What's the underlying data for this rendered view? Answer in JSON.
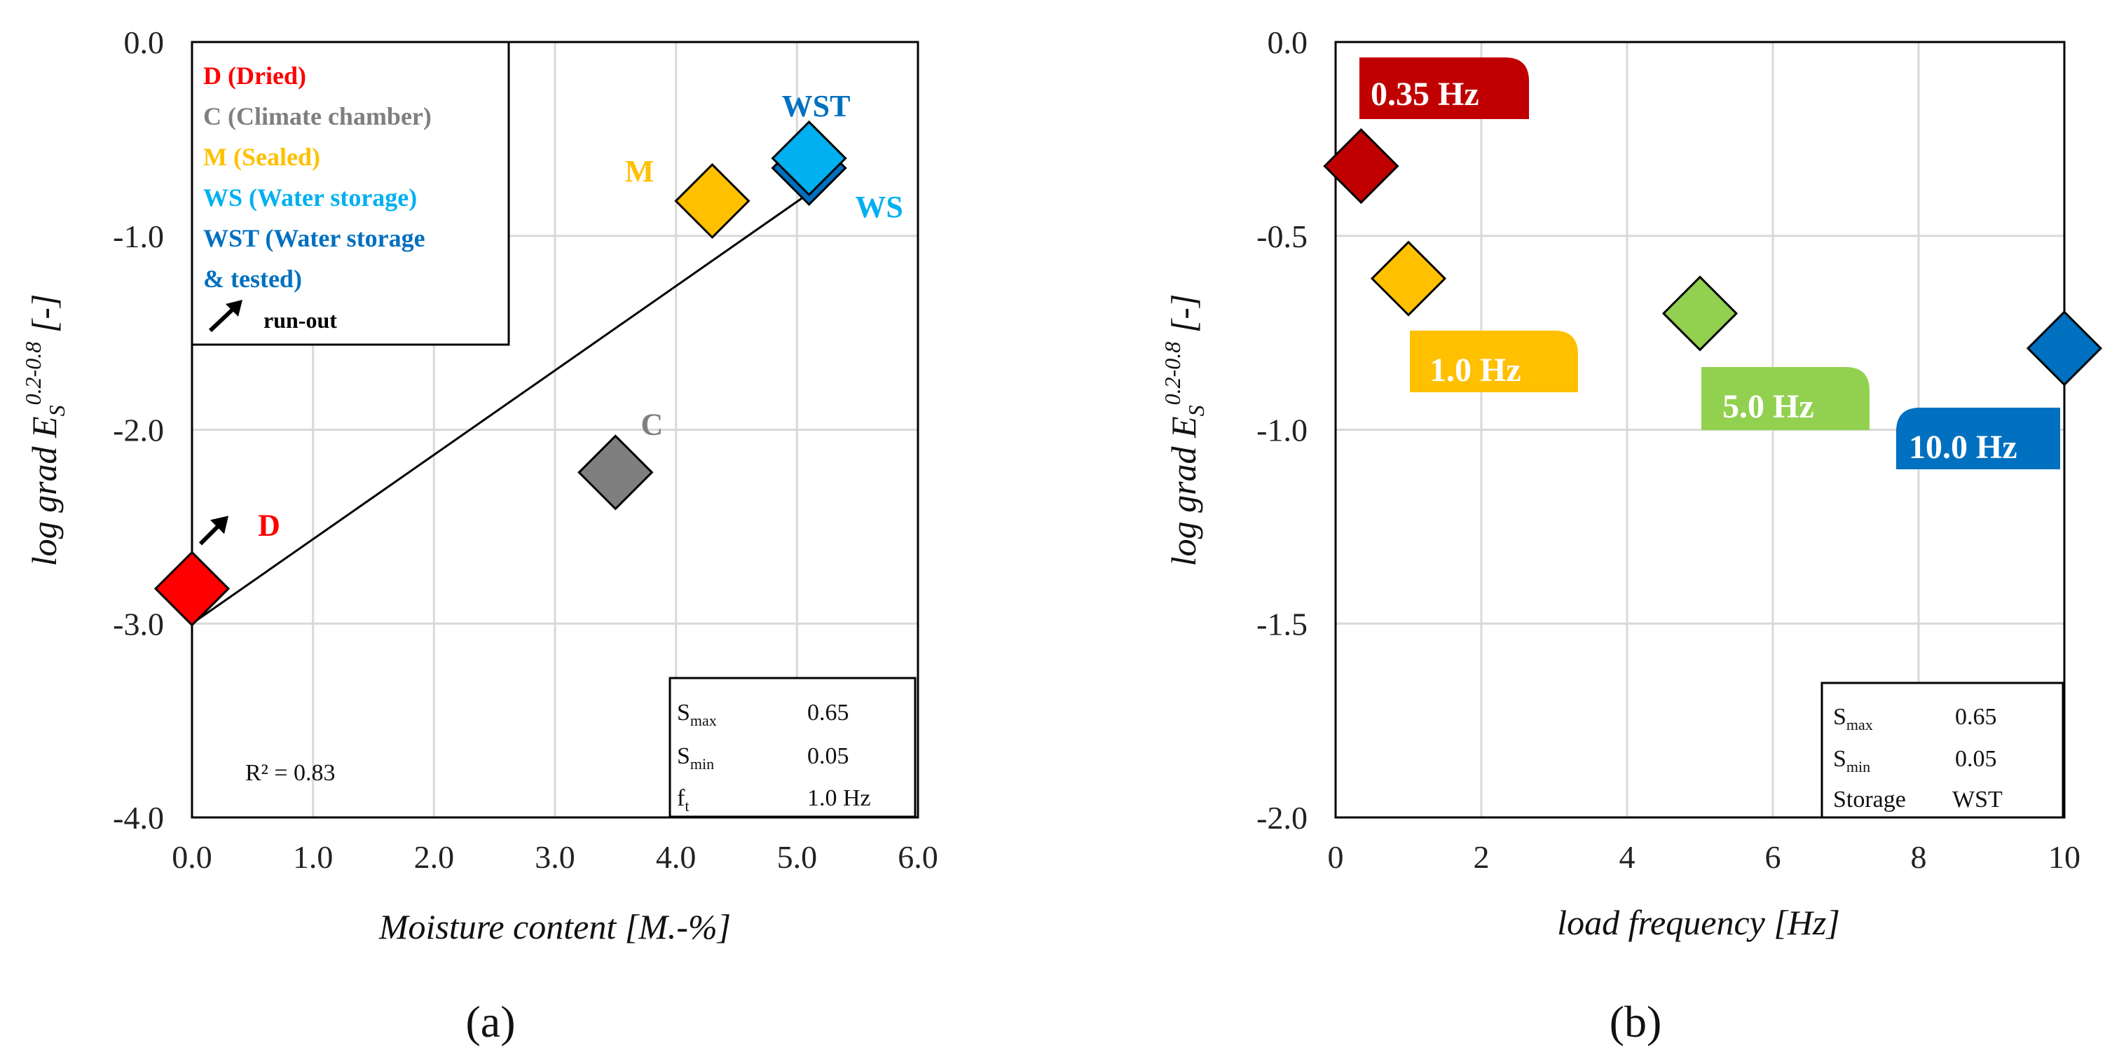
{
  "chart_data": [
    {
      "type": "scatter",
      "panel": "(a)",
      "xlabel": "Moisture content [M.-%]",
      "ylabel_main": "log grad E",
      "ylabel_sub": "S",
      "ylabel_sup": "0.2-0.8",
      "ylabel_tail": " [-]",
      "xlim": [
        0,
        6
      ],
      "ylim": [
        -4,
        0
      ],
      "x_ticks": [
        {
          "v": 0,
          "label": "0.0"
        },
        {
          "v": 1,
          "label": "1.0"
        },
        {
          "v": 2,
          "label": "2.0"
        },
        {
          "v": 3,
          "label": "3.0"
        },
        {
          "v": 4,
          "label": "4.0"
        },
        {
          "v": 5,
          "label": "5.0"
        },
        {
          "v": 6,
          "label": "6.0"
        }
      ],
      "y_ticks": [
        {
          "v": 0,
          "label": "0.0"
        },
        {
          "v": -1,
          "label": "-1.0"
        },
        {
          "v": -2,
          "label": "-2.0"
        },
        {
          "v": -3,
          "label": "-3.0"
        },
        {
          "v": -4,
          "label": "-4.0"
        }
      ],
      "points": [
        {
          "name": "D",
          "x": 0.0,
          "y": -2.82,
          "color": "#ff0000",
          "label": "D",
          "label_color": "#ff0000",
          "runout": true
        },
        {
          "name": "C",
          "x": 3.5,
          "y": -2.22,
          "color": "#7f7f7f",
          "label": "C",
          "label_color": "#7f7f7f"
        },
        {
          "name": "M",
          "x": 4.3,
          "y": -0.82,
          "color": "#ffc000",
          "label": "M",
          "label_color": "#ffc000"
        },
        {
          "name": "WST",
          "x": 5.1,
          "y": -0.65,
          "color": "#0070c0",
          "label": "WST",
          "label_color": "#0070c0"
        },
        {
          "name": "WS",
          "x": 5.1,
          "y": -0.6,
          "color": "#00b0f0",
          "label": "WS",
          "label_color": "#00b0f0"
        }
      ],
      "trendline": {
        "x1": 0.0,
        "y1": -3.0,
        "x2": 5.1,
        "y2": -0.78,
        "r2_label": "R² = 0.83"
      },
      "legend": [
        {
          "text": "D (Dried)",
          "color": "#ff0000"
        },
        {
          "text": "C (Climate chamber)",
          "color": "#7f7f7f"
        },
        {
          "text": "M (Sealed)",
          "color": "#ffc000"
        },
        {
          "text": "WS (Water storage)",
          "color": "#00b0f0"
        },
        {
          "text": "WST (Water storage",
          "color": "#0070c0"
        },
        {
          "text": "& tested)",
          "color": "#0070c0"
        },
        {
          "text": "run-out",
          "color": "#000000"
        }
      ],
      "info": [
        {
          "key": "S",
          "sub": "max",
          "value": "0.65"
        },
        {
          "key": "S",
          "sub": "min",
          "value": "0.05"
        },
        {
          "key": "f",
          "sub": "t",
          "value": "1.0 Hz"
        }
      ]
    },
    {
      "type": "scatter",
      "panel": "(b)",
      "xlabel": "load frequency [Hz]",
      "ylabel_main": "log grad E",
      "ylabel_sub": "S",
      "ylabel_sup": "0.2-0.8",
      "ylabel_tail": " [-]",
      "xlim": [
        0,
        10
      ],
      "ylim": [
        -2,
        0
      ],
      "x_ticks": [
        {
          "v": 0,
          "label": "0"
        },
        {
          "v": 2,
          "label": "2"
        },
        {
          "v": 4,
          "label": "4"
        },
        {
          "v": 6,
          "label": "6"
        },
        {
          "v": 8,
          "label": "8"
        },
        {
          "v": 10,
          "label": "10"
        }
      ],
      "y_ticks": [
        {
          "v": 0,
          "label": "0.0"
        },
        {
          "v": -0.5,
          "label": "-0.5"
        },
        {
          "v": -1,
          "label": "-1.0"
        },
        {
          "v": -1.5,
          "label": "-1.5"
        },
        {
          "v": -2,
          "label": "-2.0"
        }
      ],
      "points": [
        {
          "name": "0.35 Hz",
          "x": 0.35,
          "y": -0.32,
          "color": "#c00000",
          "label": "0.35 Hz"
        },
        {
          "name": "1.0 Hz",
          "x": 1.0,
          "y": -0.61,
          "color": "#ffc000",
          "label": "1.0 Hz"
        },
        {
          "name": "5.0 Hz",
          "x": 5.0,
          "y": -0.7,
          "color": "#92d050",
          "label": "5.0 Hz"
        },
        {
          "name": "10.0 Hz",
          "x": 10.0,
          "y": -0.79,
          "color": "#0070c0",
          "label": "10.0 Hz"
        }
      ],
      "info": [
        {
          "key": "S",
          "sub": "max",
          "value": "0.65"
        },
        {
          "key": "S",
          "sub": "min",
          "value": "0.05"
        },
        {
          "key": "Storage",
          "sub": "",
          "value": "WST"
        }
      ]
    }
  ]
}
